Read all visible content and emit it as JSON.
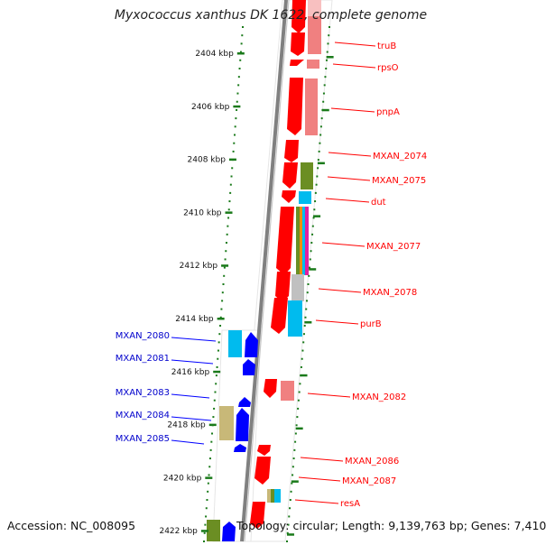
{
  "title": "Myxococcus xanthus DK 1622, complete genome",
  "footer": {
    "accession": "Accession: NC_008095",
    "summary": "Topology: circular; Length: 9,139,763 bp; Genes: 7,410"
  },
  "ticks": [
    {
      "label": "2404 kbp",
      "kb": 2404
    },
    {
      "label": "2406 kbp",
      "kb": 2406
    },
    {
      "label": "2408 kbp",
      "kb": 2408
    },
    {
      "label": "2410 kbp",
      "kb": 2410
    },
    {
      "label": "2412 kbp",
      "kb": 2412
    },
    {
      "label": "2414 kbp",
      "kb": 2414
    },
    {
      "label": "2416 kbp",
      "kb": 2416
    },
    {
      "label": "2418 kbp",
      "kb": 2418
    },
    {
      "label": "2420 kbp",
      "kb": 2420
    },
    {
      "label": "2422 kbp",
      "kb": 2422
    }
  ],
  "colors": {
    "forward_gene": "#ff0000",
    "reverse_gene": "#0000ff",
    "backbone": "#808080",
    "tick": "#1a7a1a",
    "cyan": "#00bbee",
    "olive": "#6b8e23",
    "khaki": "#c8b878",
    "grey_band": "#c0c0c0",
    "pink_band": "#f08080",
    "magenta": "#e020a0"
  },
  "forward_labels": [
    {
      "text": "truB"
    },
    {
      "text": "rpsO"
    },
    {
      "text": "pnpA"
    },
    {
      "text": "MXAN_2074"
    },
    {
      "text": "MXAN_2075"
    },
    {
      "text": "dut"
    },
    {
      "text": "MXAN_2077"
    },
    {
      "text": "MXAN_2078"
    },
    {
      "text": "purB"
    },
    {
      "text": "MXAN_2082"
    },
    {
      "text": "MXAN_2086"
    },
    {
      "text": "MXAN_2087"
    },
    {
      "text": "resA"
    }
  ],
  "reverse_labels": [
    {
      "text": "MXAN_2080"
    },
    {
      "text": "MXAN_2081"
    },
    {
      "text": "MXAN_2083"
    },
    {
      "text": "MXAN_2084"
    },
    {
      "text": "MXAN_2085"
    }
  ]
}
